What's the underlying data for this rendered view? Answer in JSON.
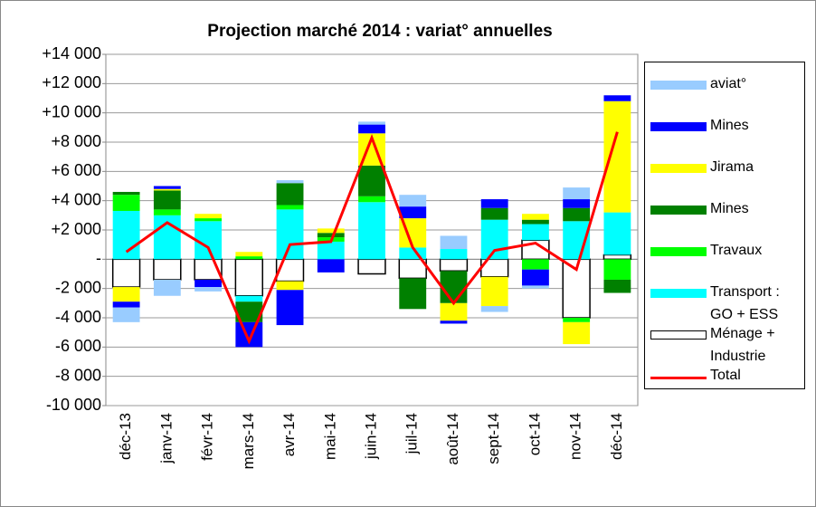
{
  "chart_data": {
    "type": "bar",
    "stacked": true,
    "title": "Projection marché 2014 : variat° annuelles",
    "categories": [
      "déc-13",
      "janv-14",
      "févr-14",
      "mars-14",
      "avr-14",
      "mai-14",
      "juin-14",
      "juil-14",
      "août-14",
      "sept-14",
      "oct-14",
      "nov-14",
      "déc-14"
    ],
    "ylim": [
      -10000,
      14000
    ],
    "yticks": [
      {
        "value": -10000,
        "label": "-10 000"
      },
      {
        "value": -8000,
        "label": "-8 000"
      },
      {
        "value": -6000,
        "label": "-6 000"
      },
      {
        "value": -4000,
        "label": "-4 000"
      },
      {
        "value": -2000,
        "label": "-2 000"
      },
      {
        "value": 0,
        "label": "-"
      },
      {
        "value": 2000,
        "label": "+2 000"
      },
      {
        "value": 4000,
        "label": "+4 000"
      },
      {
        "value": 6000,
        "label": "+6 000"
      },
      {
        "value": 8000,
        "label": "+8 000"
      },
      {
        "value": 10000,
        "label": "+10 000"
      },
      {
        "value": 12000,
        "label": "+12 000"
      },
      {
        "value": 14000,
        "label": "+14 000"
      }
    ],
    "grid": true,
    "legend": "right",
    "series": [
      {
        "name": "Ménage + Industrie",
        "color": "#ffffff",
        "values": [
          -1900,
          -1400,
          -1400,
          -2500,
          -1500,
          0,
          -1000,
          -1300,
          -800,
          -1200,
          1300,
          -4000,
          300
        ]
      },
      {
        "name": "Transport : GO + ESS",
        "color": "#00ffff",
        "values": [
          3300,
          3000,
          2600,
          -400,
          3400,
          1200,
          3900,
          800,
          700,
          2700,
          1100,
          2600,
          2900
        ]
      },
      {
        "name": "Travaux",
        "color": "#00ff00",
        "values": [
          1100,
          400,
          200,
          200,
          300,
          300,
          400,
          0,
          0,
          0,
          -700,
          -300,
          -1400
        ]
      },
      {
        "name": "Mines",
        "color": "#008000",
        "values": [
          200,
          1300,
          0,
          -1400,
          1500,
          300,
          2100,
          -2100,
          -2200,
          800,
          300,
          900,
          -900
        ]
      },
      {
        "name": "Jirama",
        "color": "#ffff00",
        "values": [
          -1000,
          100,
          300,
          300,
          -600,
          300,
          2200,
          2000,
          -1200,
          -2000,
          400,
          -1500,
          7600
        ]
      },
      {
        "name": "Mines",
        "color": "#0000ff",
        "values": [
          -400,
          200,
          -500,
          -1700,
          -2400,
          -900,
          600,
          800,
          -200,
          600,
          -1100,
          600,
          400
        ]
      },
      {
        "name": "aviat°",
        "color": "#99ccff",
        "values": [
          -1000,
          -1100,
          -300,
          0,
          200,
          0,
          200,
          800,
          900,
          -400,
          -200,
          800,
          0
        ]
      },
      {
        "name": "Total",
        "type": "line",
        "color": "#ff0000",
        "values": [
          500,
          2500,
          800,
          -5600,
          1000,
          1200,
          8300,
          800,
          -3000,
          600,
          1100,
          -700,
          8700
        ]
      }
    ]
  }
}
